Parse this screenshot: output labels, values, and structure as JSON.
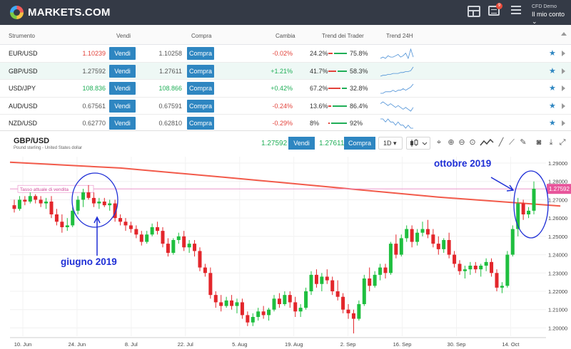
{
  "app": {
    "logo_text": "MARKETS.COM",
    "notification_count": "9"
  },
  "account": {
    "demo_label": "CFD Demo",
    "menu_label": "Il mio conto"
  },
  "table": {
    "headers": {
      "instrument": "Strumento",
      "sell": "Vendi",
      "buy": "Compra",
      "change": "Cambia",
      "trader_trend": "Trend dei Trader",
      "trend24": "Trend 24H"
    },
    "rows": [
      {
        "symbol": "EUR/USD",
        "sell": "1.10239",
        "sell_color": "red",
        "sell_label": "Vendi",
        "buy": "1.10258",
        "buy_color": "gray",
        "buy_label": "Compra",
        "change": "-0.02%",
        "change_dir": "neg",
        "sell_pct": "24.2%",
        "buy_pct": "75.8%",
        "sell_frac": 0.242,
        "spark": [
          5,
          6,
          5,
          7,
          6,
          6,
          7,
          8,
          6,
          7,
          9,
          5,
          12,
          6
        ]
      },
      {
        "symbol": "GBP/USD",
        "sell": "1.27592",
        "sell_color": "gray",
        "sell_label": "Vendi",
        "buy": "1.27611",
        "buy_color": "gray",
        "buy_label": "Compra",
        "change": "+1.21%",
        "change_dir": "pos",
        "sell_pct": "41.7%",
        "buy_pct": "58.3%",
        "sell_frac": 0.417,
        "spark": [
          3,
          4,
          4,
          5,
          5,
          6,
          6,
          6,
          7,
          7,
          8,
          8,
          9,
          13
        ]
      },
      {
        "symbol": "USD/JPY",
        "sell": "108.836",
        "sell_color": "green",
        "sell_label": "Vendi",
        "buy": "108.866",
        "buy_color": "green",
        "buy_label": "Compra",
        "change": "+0.42%",
        "change_dir": "pos",
        "sell_pct": "67.2%",
        "buy_pct": "32.8%",
        "sell_frac": 0.672,
        "spark": [
          4,
          4,
          5,
          5,
          5,
          6,
          5,
          6,
          6,
          7,
          6,
          7,
          8,
          10
        ]
      },
      {
        "symbol": "AUD/USD",
        "sell": "0.67561",
        "sell_color": "gray",
        "sell_label": "Vendi",
        "buy": "0.67591",
        "buy_color": "gray",
        "buy_label": "Compra",
        "change": "-0.24%",
        "change_dir": "neg",
        "sell_pct": "13.6%",
        "buy_pct": "86.4%",
        "sell_frac": 0.136,
        "spark": [
          8,
          9,
          8,
          7,
          8,
          7,
          6,
          7,
          6,
          5,
          6,
          5,
          4,
          6
        ]
      },
      {
        "symbol": "NZD/USD",
        "sell": "0.62770",
        "sell_color": "gray",
        "sell_label": "Vendi",
        "buy": "0.62810",
        "buy_color": "gray",
        "buy_label": "Compra",
        "change": "-0.29%",
        "change_dir": "neg",
        "sell_pct": "8%",
        "buy_pct": "92%",
        "sell_frac": 0.08,
        "spark": [
          8,
          8,
          7,
          8,
          7,
          7,
          6,
          7,
          6,
          6,
          5,
          6,
          5,
          5
        ]
      }
    ]
  },
  "chart_header": {
    "title": "GBP/USD",
    "subtitle": "Pound sterling - United States dollar",
    "sell_price": "1.27592",
    "sell_label": "Vendi",
    "buy_price": "1.27611",
    "buy_label": "Compra",
    "timeframe": "1D"
  },
  "annotations": {
    "june": "giugno 2019",
    "october": "ottobre 2019"
  },
  "chart_data": {
    "type": "candlestick",
    "title": "GBP/USD",
    "x_ticks": [
      "10. Jun",
      "24. Jun",
      "8. Jul",
      "22. Jul",
      "5. Aug",
      "19. Aug",
      "2. Sep",
      "16. Sep",
      "30. Sep",
      "14. Oct"
    ],
    "y_ticks": [
      "1.29000",
      "1.28000",
      "1.27000",
      "1.26000",
      "1.25000",
      "1.24000",
      "1.23000",
      "1.22000",
      "1.21000",
      "1.20000"
    ],
    "ylim": [
      1.1955,
      1.2935
    ],
    "current_price": "1.27592",
    "current_price_label": "Tasso attuale di vendita",
    "moving_average": [
      [
        0,
        1.2905
      ],
      [
        20,
        1.2873
      ],
      [
        40,
        1.2822
      ],
      [
        60,
        1.2768
      ],
      [
        80,
        1.2714
      ],
      [
        100,
        1.2672
      ],
      [
        103,
        1.2666
      ]
    ],
    "candles": [
      [
        1.267,
        1.27,
        1.263,
        1.265
      ],
      [
        1.265,
        1.272,
        1.264,
        1.27
      ],
      [
        1.27,
        1.272,
        1.267,
        1.269
      ],
      [
        1.269,
        1.274,
        1.268,
        1.272
      ],
      [
        1.272,
        1.273,
        1.268,
        1.27
      ],
      [
        1.27,
        1.272,
        1.266,
        1.268
      ],
      [
        1.268,
        1.271,
        1.265,
        1.269
      ],
      [
        1.269,
        1.272,
        1.26,
        1.262
      ],
      [
        1.262,
        1.265,
        1.256,
        1.258
      ],
      [
        1.258,
        1.262,
        1.252,
        1.255
      ],
      [
        1.255,
        1.26,
        1.253,
        1.256
      ],
      [
        1.256,
        1.266,
        1.255,
        1.264
      ],
      [
        1.264,
        1.272,
        1.262,
        1.27
      ],
      [
        1.27,
        1.276,
        1.266,
        1.274
      ],
      [
        1.274,
        1.278,
        1.27,
        1.271
      ],
      [
        1.271,
        1.274,
        1.266,
        1.268
      ],
      [
        1.268,
        1.271,
        1.265,
        1.269
      ],
      [
        1.269,
        1.271,
        1.266,
        1.267
      ],
      [
        1.267,
        1.27,
        1.264,
        1.268
      ],
      [
        1.268,
        1.27,
        1.258,
        1.26
      ],
      [
        1.26,
        1.262,
        1.256,
        1.258
      ],
      [
        1.258,
        1.26,
        1.253,
        1.256
      ],
      [
        1.256,
        1.258,
        1.252,
        1.254
      ],
      [
        1.254,
        1.256,
        1.249,
        1.251
      ],
      [
        1.251,
        1.253,
        1.245,
        1.247
      ],
      [
        1.247,
        1.253,
        1.246,
        1.251
      ],
      [
        1.251,
        1.257,
        1.25,
        1.255
      ],
      [
        1.255,
        1.258,
        1.251,
        1.253
      ],
      [
        1.253,
        1.255,
        1.244,
        1.246
      ],
      [
        1.246,
        1.249,
        1.239,
        1.241
      ],
      [
        1.241,
        1.249,
        1.24,
        1.248
      ],
      [
        1.248,
        1.252,
        1.246,
        1.25
      ],
      [
        1.25,
        1.253,
        1.242,
        1.244
      ],
      [
        1.244,
        1.248,
        1.241,
        1.246
      ],
      [
        1.246,
        1.248,
        1.239,
        1.242
      ],
      [
        1.242,
        1.244,
        1.231,
        1.233
      ],
      [
        1.233,
        1.235,
        1.228,
        1.23
      ],
      [
        1.23,
        1.233,
        1.216,
        1.218
      ],
      [
        1.218,
        1.22,
        1.211,
        1.214
      ],
      [
        1.214,
        1.218,
        1.209,
        1.212
      ],
      [
        1.212,
        1.217,
        1.211,
        1.215
      ],
      [
        1.215,
        1.218,
        1.21,
        1.212
      ],
      [
        1.212,
        1.216,
        1.208,
        1.214
      ],
      [
        1.214,
        1.216,
        1.205,
        1.207
      ],
      [
        1.207,
        1.209,
        1.201,
        1.203
      ],
      [
        1.203,
        1.208,
        1.201,
        1.206
      ],
      [
        1.206,
        1.211,
        1.204,
        1.209
      ],
      [
        1.209,
        1.212,
        1.205,
        1.207
      ],
      [
        1.207,
        1.211,
        1.204,
        1.21
      ],
      [
        1.21,
        1.218,
        1.209,
        1.216
      ],
      [
        1.216,
        1.219,
        1.211,
        1.213
      ],
      [
        1.213,
        1.22,
        1.212,
        1.218
      ],
      [
        1.218,
        1.22,
        1.211,
        1.214
      ],
      [
        1.214,
        1.217,
        1.206,
        1.209
      ],
      [
        1.209,
        1.213,
        1.206,
        1.211
      ],
      [
        1.211,
        1.222,
        1.21,
        1.22
      ],
      [
        1.22,
        1.231,
        1.218,
        1.229
      ],
      [
        1.229,
        1.232,
        1.222,
        1.224
      ],
      [
        1.224,
        1.23,
        1.22,
        1.228
      ],
      [
        1.228,
        1.232,
        1.224,
        1.226
      ],
      [
        1.226,
        1.228,
        1.218,
        1.22
      ],
      [
        1.22,
        1.226,
        1.215,
        1.217
      ],
      [
        1.217,
        1.219,
        1.208,
        1.21
      ],
      [
        1.21,
        1.213,
        1.205,
        1.208
      ],
      [
        1.208,
        1.21,
        1.197,
        1.205
      ],
      [
        1.205,
        1.215,
        1.204,
        1.213
      ],
      [
        1.213,
        1.229,
        1.212,
        1.227
      ],
      [
        1.227,
        1.233,
        1.22,
        1.223
      ],
      [
        1.223,
        1.231,
        1.222,
        1.229
      ],
      [
        1.229,
        1.235,
        1.226,
        1.233
      ],
      [
        1.233,
        1.235,
        1.227,
        1.23
      ],
      [
        1.23,
        1.247,
        1.229,
        1.246
      ],
      [
        1.246,
        1.251,
        1.238,
        1.24
      ],
      [
        1.24,
        1.251,
        1.239,
        1.249
      ],
      [
        1.249,
        1.256,
        1.247,
        1.254
      ],
      [
        1.254,
        1.256,
        1.244,
        1.247
      ],
      [
        1.247,
        1.254,
        1.245,
        1.252
      ],
      [
        1.252,
        1.258,
        1.25,
        1.254
      ],
      [
        1.254,
        1.259,
        1.249,
        1.251
      ],
      [
        1.251,
        1.254,
        1.244,
        1.246
      ],
      [
        1.246,
        1.25,
        1.24,
        1.243
      ],
      [
        1.243,
        1.249,
        1.241,
        1.248
      ],
      [
        1.248,
        1.252,
        1.238,
        1.24
      ],
      [
        1.24,
        1.242,
        1.233,
        1.235
      ],
      [
        1.235,
        1.237,
        1.229,
        1.231
      ],
      [
        1.231,
        1.234,
        1.227,
        1.232
      ],
      [
        1.232,
        1.236,
        1.229,
        1.234
      ],
      [
        1.234,
        1.236,
        1.23,
        1.232
      ],
      [
        1.232,
        1.235,
        1.228,
        1.234
      ],
      [
        1.234,
        1.238,
        1.231,
        1.236
      ],
      [
        1.236,
        1.238,
        1.228,
        1.23
      ],
      [
        1.23,
        1.232,
        1.22,
        1.222
      ],
      [
        1.222,
        1.225,
        1.219,
        1.223
      ],
      [
        1.223,
        1.242,
        1.222,
        1.24
      ],
      [
        1.24,
        1.256,
        1.239,
        1.254
      ],
      [
        1.254,
        1.271,
        1.25,
        1.268
      ],
      [
        1.268,
        1.27,
        1.259,
        1.262
      ],
      [
        1.262,
        1.266,
        1.26,
        1.264
      ],
      [
        1.264,
        1.28,
        1.262,
        1.276
      ]
    ]
  }
}
